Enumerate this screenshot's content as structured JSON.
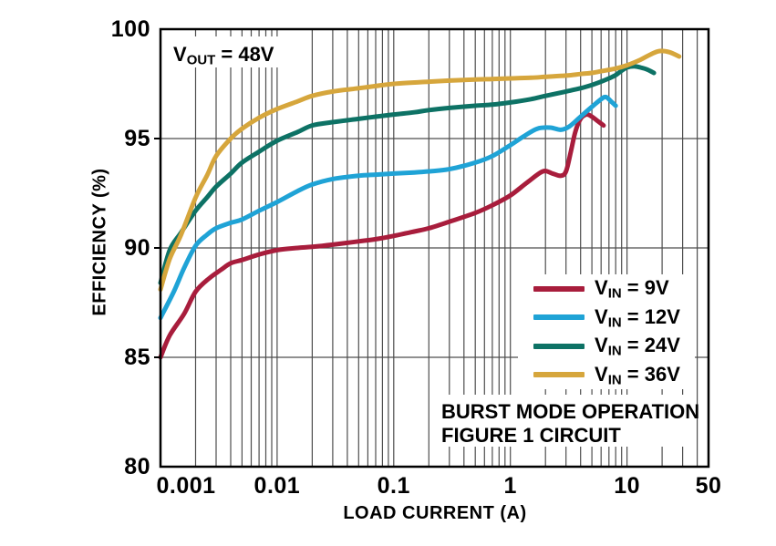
{
  "figure": {
    "annotation": {
      "prefix": "V",
      "sub": "OUT",
      "rest": " = 48V"
    },
    "extra_text": [
      "BURST MODE OPERATION",
      "FIGURE 1 CIRCUIT"
    ]
  },
  "chart_data": {
    "type": "line",
    "title": "",
    "xlabel": "LOAD CURRENT (A)",
    "ylabel": "EFFICIENCY (%)",
    "x_scale": "log",
    "xlim": [
      0.001,
      50
    ],
    "ylim": [
      80,
      100
    ],
    "grid": "log minor vertical lines + horizontal lines at 85/90/95",
    "legend_position": "right-middle inside plot",
    "x_ticks": [
      {
        "v": 0.001,
        "label": "0.001"
      },
      {
        "v": 0.01,
        "label": "0.01"
      },
      {
        "v": 0.1,
        "label": "0.1"
      },
      {
        "v": 1,
        "label": "1"
      },
      {
        "v": 10,
        "label": "10"
      },
      {
        "v": 50,
        "label": "50"
      }
    ],
    "y_ticks": [
      {
        "v": 100,
        "label": "100"
      },
      {
        "v": 95,
        "label": "95"
      },
      {
        "v": 90,
        "label": "90"
      },
      {
        "v": 85,
        "label": "85"
      },
      {
        "v": 80,
        "label": "80"
      }
    ],
    "y_gridlines": [
      85,
      90,
      95
    ],
    "style": {
      "grid_color": "#4d4d4d",
      "frame_color": "#000000",
      "background": "#ffffff"
    },
    "series": [
      {
        "id": "vin-9v",
        "name": "VIN = 9V",
        "label_prefix": "V",
        "label_sub": "IN",
        "label_rest": " = 9V",
        "color": "#a81d3c",
        "points": [
          [
            0.001,
            85.0
          ],
          [
            0.0012,
            86.0
          ],
          [
            0.0016,
            87.0
          ],
          [
            0.002,
            88.0
          ],
          [
            0.0026,
            88.6
          ],
          [
            0.0033,
            89.0
          ],
          [
            0.004,
            89.3
          ],
          [
            0.005,
            89.45
          ],
          [
            0.007,
            89.7
          ],
          [
            0.01,
            89.9
          ],
          [
            0.015,
            90.0
          ],
          [
            0.02,
            90.05
          ],
          [
            0.03,
            90.15
          ],
          [
            0.05,
            90.3
          ],
          [
            0.07,
            90.4
          ],
          [
            0.1,
            90.55
          ],
          [
            0.15,
            90.75
          ],
          [
            0.2,
            90.9
          ],
          [
            0.3,
            91.2
          ],
          [
            0.5,
            91.6
          ],
          [
            0.7,
            91.95
          ],
          [
            1,
            92.4
          ],
          [
            1.4,
            93.0
          ],
          [
            1.9,
            93.5
          ],
          [
            2.3,
            93.4
          ],
          [
            2.7,
            93.3
          ],
          [
            3.0,
            93.5
          ],
          [
            3.3,
            94.4
          ],
          [
            3.6,
            95.3
          ],
          [
            4.0,
            95.9
          ],
          [
            4.5,
            96.1
          ],
          [
            5.0,
            96.0
          ],
          [
            5.6,
            95.8
          ],
          [
            6.3,
            95.6
          ]
        ]
      },
      {
        "id": "vin-12v",
        "name": "VIN = 12V",
        "label_prefix": "V",
        "label_sub": "IN",
        "label_rest": " = 12V",
        "color": "#1fa3d6",
        "points": [
          [
            0.001,
            86.8
          ],
          [
            0.0013,
            88.0
          ],
          [
            0.0016,
            89.1
          ],
          [
            0.002,
            90.1
          ],
          [
            0.0025,
            90.6
          ],
          [
            0.003,
            90.9
          ],
          [
            0.004,
            91.15
          ],
          [
            0.005,
            91.3
          ],
          [
            0.007,
            91.7
          ],
          [
            0.01,
            92.1
          ],
          [
            0.015,
            92.6
          ],
          [
            0.02,
            92.9
          ],
          [
            0.03,
            93.15
          ],
          [
            0.05,
            93.3
          ],
          [
            0.07,
            93.35
          ],
          [
            0.1,
            93.4
          ],
          [
            0.15,
            93.45
          ],
          [
            0.2,
            93.5
          ],
          [
            0.3,
            93.6
          ],
          [
            0.5,
            93.9
          ],
          [
            0.7,
            94.2
          ],
          [
            1,
            94.7
          ],
          [
            1.3,
            95.1
          ],
          [
            1.7,
            95.45
          ],
          [
            2.2,
            95.5
          ],
          [
            2.7,
            95.4
          ],
          [
            3.2,
            95.55
          ],
          [
            4,
            96.0
          ],
          [
            5,
            96.45
          ],
          [
            6,
            96.8
          ],
          [
            6.6,
            96.9
          ],
          [
            7.3,
            96.7
          ],
          [
            8,
            96.5
          ]
        ]
      },
      {
        "id": "vin-24v",
        "name": "VIN = 24V",
        "label_prefix": "V",
        "label_sub": "IN",
        "label_rest": " = 24V",
        "color": "#0d7265",
        "points": [
          [
            0.001,
            88.4
          ],
          [
            0.0012,
            89.9
          ],
          [
            0.0015,
            90.7
          ],
          [
            0.002,
            91.7
          ],
          [
            0.0025,
            92.3
          ],
          [
            0.003,
            92.8
          ],
          [
            0.004,
            93.4
          ],
          [
            0.005,
            93.9
          ],
          [
            0.007,
            94.4
          ],
          [
            0.01,
            94.9
          ],
          [
            0.015,
            95.3
          ],
          [
            0.02,
            95.6
          ],
          [
            0.03,
            95.75
          ],
          [
            0.05,
            95.9
          ],
          [
            0.07,
            96.0
          ],
          [
            0.1,
            96.1
          ],
          [
            0.15,
            96.2
          ],
          [
            0.2,
            96.3
          ],
          [
            0.3,
            96.4
          ],
          [
            0.5,
            96.5
          ],
          [
            0.7,
            96.55
          ],
          [
            1,
            96.65
          ],
          [
            1.5,
            96.8
          ],
          [
            2,
            96.95
          ],
          [
            3,
            97.15
          ],
          [
            4,
            97.3
          ],
          [
            5,
            97.45
          ],
          [
            6,
            97.6
          ],
          [
            7,
            97.75
          ],
          [
            8,
            97.9
          ],
          [
            9,
            98.1
          ],
          [
            10,
            98.25
          ],
          [
            11.5,
            98.3
          ],
          [
            13,
            98.25
          ],
          [
            15,
            98.15
          ],
          [
            17,
            98.0
          ]
        ]
      },
      {
        "id": "vin-36v",
        "name": "VIN = 36V",
        "label_prefix": "V",
        "label_sub": "IN",
        "label_rest": " = 36V",
        "color": "#d6a63c",
        "points": [
          [
            0.001,
            88.1
          ],
          [
            0.0012,
            89.5
          ],
          [
            0.0015,
            90.6
          ],
          [
            0.002,
            92.3
          ],
          [
            0.0025,
            93.3
          ],
          [
            0.003,
            94.2
          ],
          [
            0.004,
            95.0
          ],
          [
            0.005,
            95.45
          ],
          [
            0.007,
            95.95
          ],
          [
            0.01,
            96.35
          ],
          [
            0.015,
            96.7
          ],
          [
            0.02,
            96.95
          ],
          [
            0.03,
            97.15
          ],
          [
            0.05,
            97.3
          ],
          [
            0.07,
            97.4
          ],
          [
            0.1,
            97.5
          ],
          [
            0.2,
            97.6
          ],
          [
            0.3,
            97.65
          ],
          [
            0.5,
            97.7
          ],
          [
            0.7,
            97.72
          ],
          [
            1,
            97.75
          ],
          [
            1.5,
            97.78
          ],
          [
            2,
            97.82
          ],
          [
            3,
            97.88
          ],
          [
            4,
            97.95
          ],
          [
            5,
            98.0
          ],
          [
            6,
            98.08
          ],
          [
            8,
            98.2
          ],
          [
            10,
            98.35
          ],
          [
            13,
            98.6
          ],
          [
            16,
            98.85
          ],
          [
            19,
            99.0
          ],
          [
            23,
            98.95
          ],
          [
            28,
            98.75
          ]
        ]
      }
    ]
  }
}
